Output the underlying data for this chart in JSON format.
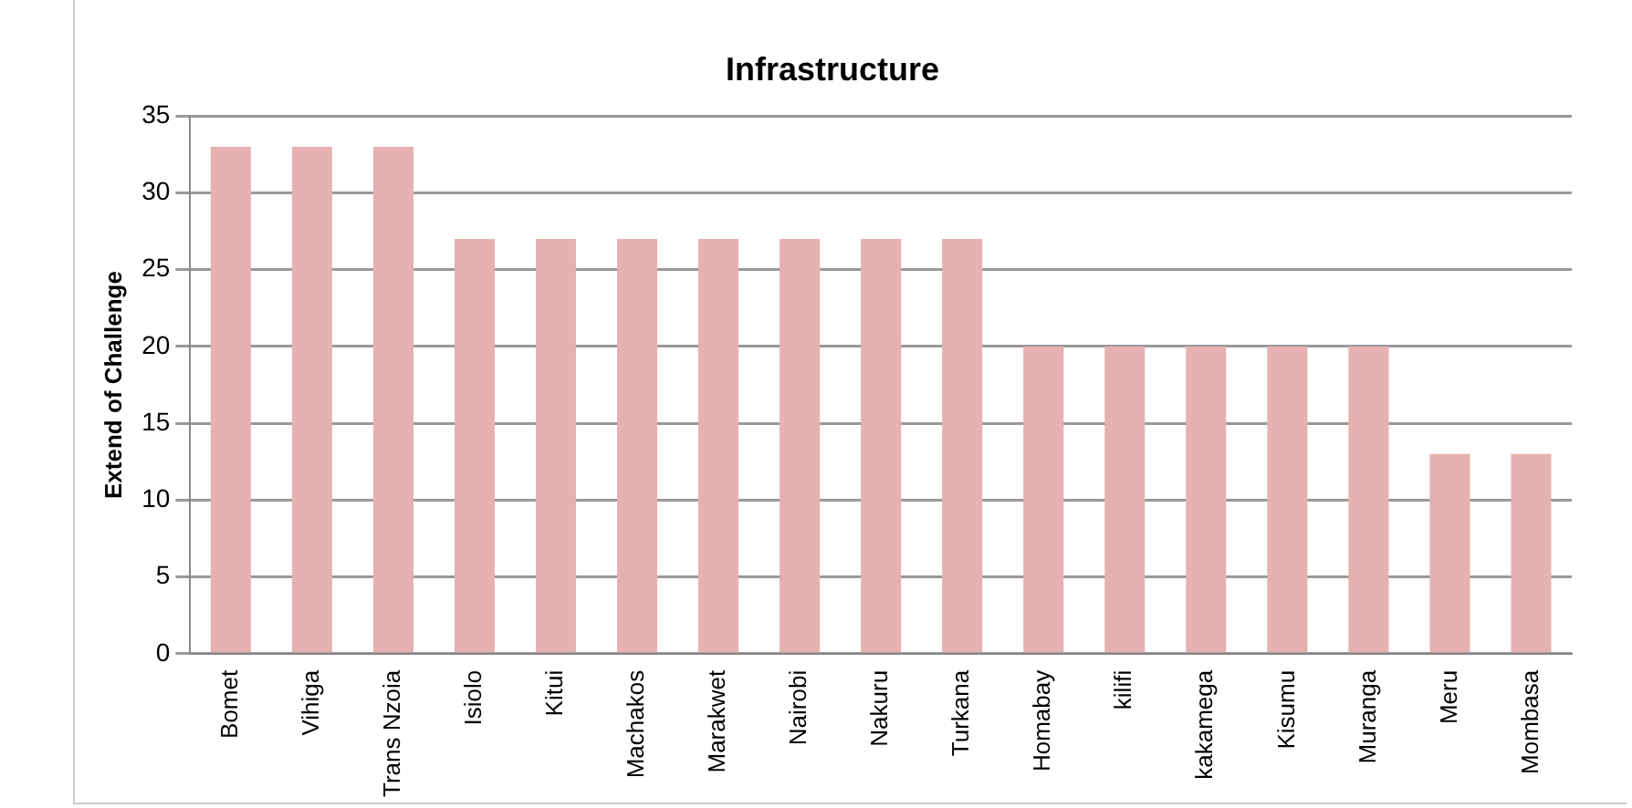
{
  "chart_data": {
    "type": "bar",
    "title": "Infrastructure",
    "ylabel": "Extend of Challenge",
    "categories": [
      "Bomet",
      "Vihiga",
      "Trans Nzoia",
      "Isiolo",
      "Kitui",
      "Machakos",
      "Marakwet",
      "Nairobi",
      "Nakuru",
      "Turkana",
      "Homabay",
      "kilifi",
      "kakamega",
      "Kisumu",
      "Muranga",
      "Meru",
      "Mombasa"
    ],
    "values": [
      33,
      33,
      33,
      27,
      27,
      27,
      27,
      27,
      27,
      27,
      20,
      20,
      20,
      20,
      20,
      13,
      13
    ],
    "color": "#e6b1b0",
    "ylim": [
      0,
      35
    ],
    "yticks": [
      0,
      5,
      10,
      15,
      20,
      25,
      30,
      35
    ],
    "grid": "y",
    "legend": false
  }
}
